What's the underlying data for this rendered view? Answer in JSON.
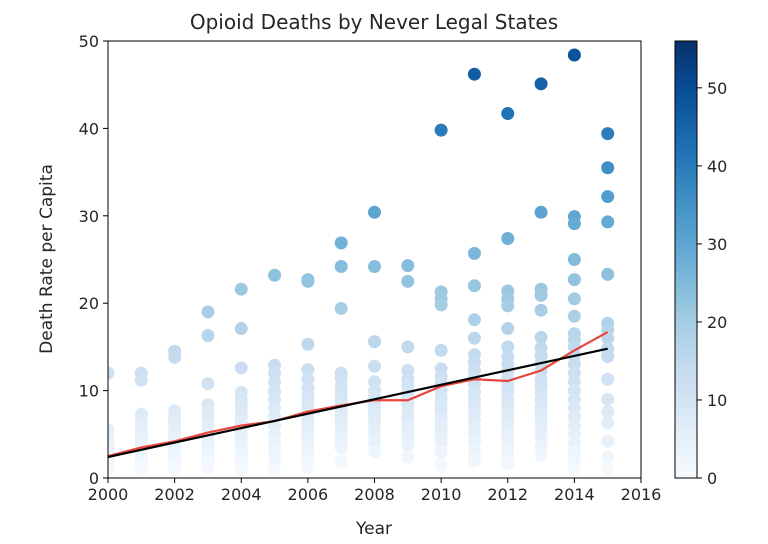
{
  "chart_data": {
    "type": "scatter",
    "title": "Opioid Deaths by Never Legal States",
    "xlabel": "Year",
    "ylabel": "Death Rate per Capita",
    "xlim": [
      2000,
      2016
    ],
    "ylim": [
      0,
      50
    ],
    "xticks": [
      "2000",
      "2002",
      "2004",
      "2006",
      "2008",
      "2010",
      "2012",
      "2014",
      "2016"
    ],
    "yticks": [
      "0",
      "10",
      "20",
      "30",
      "40",
      "50"
    ],
    "grid": false,
    "colorbar": {
      "range": [
        0,
        56
      ],
      "ticks": [
        "0",
        "10",
        "20",
        "30",
        "40",
        "50"
      ],
      "colormap": "Blues",
      "colors": [
        "#f7fbff",
        "#deebf7",
        "#c6dbef",
        "#9ecae1",
        "#6baed6",
        "#4292c6",
        "#2171b5",
        "#08519c",
        "#08306b"
      ]
    },
    "scatter_points": [
      {
        "x": 2000,
        "y": [
          12.0,
          5.5,
          4.8,
          4.0,
          3.5,
          3.2,
          2.8,
          2.5,
          2.2,
          2.0,
          1.5,
          1.0
        ]
      },
      {
        "x": 2001,
        "y": [
          12.0,
          11.2,
          7.3,
          6.6,
          6.0,
          5.6,
          5.0,
          4.5,
          4.0,
          3.5,
          3.0,
          2.5,
          2.0,
          1.5,
          1.0
        ]
      },
      {
        "x": 2002,
        "y": [
          14.5,
          13.8,
          7.7,
          7.0,
          6.4,
          5.8,
          5.2,
          4.6,
          4.2,
          3.6,
          3.0,
          2.5,
          2.0,
          1.5,
          1.0
        ]
      },
      {
        "x": 2003,
        "y": [
          19.0,
          16.3,
          10.8,
          8.4,
          7.6,
          6.9,
          6.0,
          5.4,
          4.8,
          4.0,
          3.5,
          3.0,
          2.4,
          1.8,
          1.2
        ]
      },
      {
        "x": 2004,
        "y": [
          21.6,
          17.1,
          12.6,
          9.8,
          9.0,
          8.4,
          7.6,
          7.0,
          6.3,
          5.6,
          5.0,
          4.4,
          3.8,
          3.2,
          2.6,
          2.0,
          1.4,
          0.8
        ]
      },
      {
        "x": 2005,
        "y": [
          23.2,
          12.9,
          12.0,
          11.0,
          9.9,
          9.0,
          8.0,
          7.0,
          6.0,
          5.0,
          4.0,
          3.0,
          2.0,
          1.0
        ]
      },
      {
        "x": 2006,
        "y": [
          22.7,
          22.5,
          15.3,
          12.4,
          11.3,
          10.3,
          9.5,
          8.8,
          8.0,
          7.3,
          6.6,
          5.9,
          5.1,
          4.4,
          3.6,
          2.8,
          2.0,
          1.2
        ]
      },
      {
        "x": 2007,
        "y": [
          26.9,
          24.2,
          19.4,
          12.0,
          11.5,
          10.6,
          9.8,
          9.1,
          8.4,
          7.8,
          7.1,
          6.4,
          5.8,
          5.0,
          4.2,
          3.5,
          1.9
        ]
      },
      {
        "x": 2008,
        "y": [
          30.4,
          24.2,
          15.6,
          12.8,
          11.0,
          10.0,
          9.3,
          8.6,
          7.9,
          7.2,
          6.4,
          5.6,
          4.9,
          4.0,
          3.0
        ]
      },
      {
        "x": 2009,
        "y": [
          24.3,
          22.5,
          15.0,
          12.3,
          11.3,
          10.5,
          9.8,
          9.1,
          8.4,
          7.6,
          6.9,
          6.2,
          5.4,
          4.6,
          3.8,
          2.4
        ]
      },
      {
        "x": 2010,
        "y": [
          39.8,
          21.3,
          20.5,
          19.8,
          14.6,
          12.5,
          11.6,
          10.8,
          10.0,
          9.2,
          8.5,
          7.8,
          7.0,
          6.2,
          5.5,
          4.8,
          4.0,
          3.0,
          1.5
        ]
      },
      {
        "x": 2011,
        "y": [
          46.2,
          25.7,
          22.0,
          18.1,
          16.0,
          14.1,
          13.2,
          12.3,
          11.5,
          10.7,
          9.8,
          9.0,
          8.2,
          7.4,
          6.6,
          5.8,
          5.0,
          4.1,
          3.1,
          2.0
        ]
      },
      {
        "x": 2012,
        "y": [
          41.7,
          27.4,
          21.4,
          20.5,
          19.7,
          17.1,
          15.0,
          13.9,
          13.0,
          12.2,
          11.4,
          10.6,
          9.8,
          9.0,
          8.2,
          7.4,
          6.6,
          5.8,
          5.0,
          4.2,
          3.4,
          2.6,
          1.6
        ]
      },
      {
        "x": 2013,
        "y": [
          45.1,
          30.4,
          21.6,
          20.9,
          19.2,
          16.1,
          14.9,
          14.0,
          13.1,
          12.2,
          11.3,
          10.5,
          9.7,
          8.9,
          8.1,
          7.3,
          6.5,
          5.6,
          4.7,
          3.7,
          2.6
        ]
      },
      {
        "x": 2014,
        "y": [
          48.4,
          29.9,
          29.1,
          25.0,
          22.7,
          20.5,
          18.5,
          16.5,
          15.8,
          15.0,
          14.0,
          13.0,
          12.0,
          11.0,
          10.0,
          9.0,
          8.0,
          7.0,
          6.0,
          5.0,
          4.0,
          3.0,
          2.0,
          1.0
        ]
      },
      {
        "x": 2015,
        "y": [
          39.4,
          35.5,
          32.2,
          29.3,
          23.3,
          17.7,
          16.9,
          16.0,
          14.8,
          13.9,
          11.3,
          9.0,
          7.6,
          6.3,
          4.2,
          2.4,
          0.9
        ]
      }
    ],
    "series": [
      {
        "x": [
          2000,
          2001,
          2002,
          2003,
          2004,
          2005,
          2006,
          2007,
          2008,
          2009,
          2010,
          2011,
          2012,
          2013,
          2014,
          2015
        ],
        "y": [
          2.5,
          3.5,
          4.2,
          5.2,
          6.0,
          6.5,
          7.6,
          8.3,
          8.9,
          8.9,
          10.5,
          11.3,
          11.1,
          12.3,
          14.6,
          16.7
        ],
        "color": "#e8453c"
      },
      {
        "x": [
          2000,
          2015
        ],
        "y": [
          2.4,
          14.8
        ],
        "color": "#000000"
      }
    ]
  }
}
